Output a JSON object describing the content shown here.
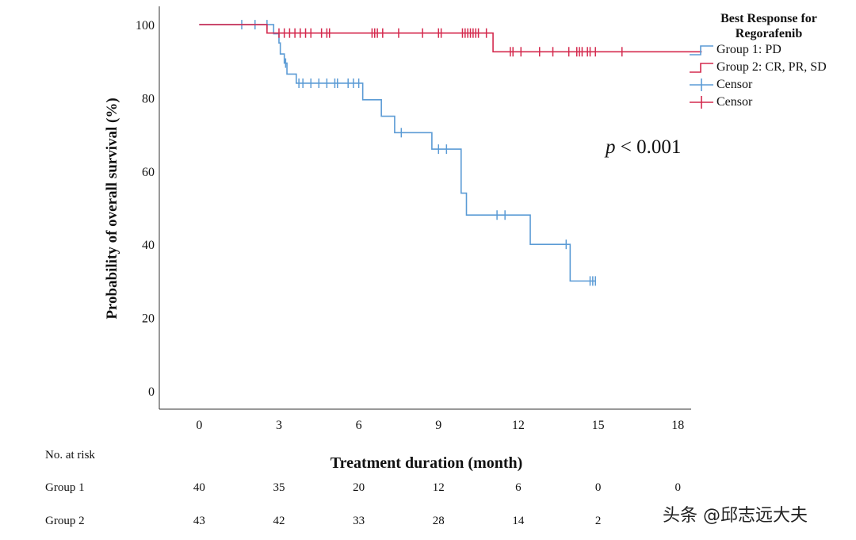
{
  "chart_data": {
    "type": "line",
    "subtype": "kaplan-meier",
    "title": "",
    "xlabel": "Treatment duration (month)",
    "ylabel": "Probability of overall survival (%)",
    "xlim": [
      -1.5,
      18.5
    ],
    "ylim": [
      -5,
      105
    ],
    "xticks": [
      0,
      3,
      6,
      9,
      12,
      15,
      18
    ],
    "yticks": [
      0,
      20,
      40,
      60,
      80,
      100
    ],
    "annotation_prefix": "p",
    "annotation_suffix": " < 0.001",
    "legend": {
      "title_line1": "Best Response for",
      "title_line2": "Regorafenib",
      "entries": [
        "Group 1: PD",
        "Group 2: CR, PR, SD",
        "Censor",
        "Censor"
      ]
    },
    "series": [
      {
        "name": "Group 1: PD",
        "color": "#5b9bd5",
        "steps": [
          [
            0,
            100
          ],
          [
            2.7,
            100
          ],
          [
            2.8,
            97.5
          ],
          [
            3.0,
            95
          ],
          [
            3.05,
            92
          ],
          [
            3.2,
            89.5
          ],
          [
            3.3,
            86.5
          ],
          [
            3.6,
            86.5
          ],
          [
            3.65,
            84
          ],
          [
            6.1,
            84
          ],
          [
            6.15,
            79.5
          ],
          [
            6.8,
            79.5
          ],
          [
            6.85,
            75
          ],
          [
            7.3,
            75
          ],
          [
            7.35,
            70.5
          ],
          [
            8.7,
            70.5
          ],
          [
            8.75,
            66
          ],
          [
            9.8,
            66
          ],
          [
            9.85,
            54
          ],
          [
            10.0,
            54
          ],
          [
            10.05,
            48
          ],
          [
            12.4,
            48
          ],
          [
            12.45,
            40
          ],
          [
            13.9,
            40
          ],
          [
            13.95,
            30
          ],
          [
            14.9,
            30
          ]
        ],
        "censor_x": [
          1.6,
          2.1,
          2.55,
          3.25,
          3.75,
          3.9,
          4.2,
          4.5,
          4.8,
          5.1,
          5.2,
          5.6,
          5.8,
          6.0,
          7.6,
          9.0,
          9.3,
          11.2,
          11.5,
          13.8,
          14.7,
          14.8,
          14.9
        ],
        "censor_y": [
          100,
          100,
          100,
          89.5,
          84,
          84,
          84,
          84,
          84,
          84,
          84,
          84,
          84,
          84,
          70.5,
          66,
          66,
          48,
          48,
          40,
          30,
          30,
          30
        ]
      },
      {
        "name": "Group 2: CR, PR, SD",
        "color": "#d42a4e",
        "steps": [
          [
            0,
            100
          ],
          [
            2.5,
            100
          ],
          [
            2.55,
            97.7
          ],
          [
            11.0,
            97.7
          ],
          [
            11.05,
            92.6
          ],
          [
            18.9,
            92.6
          ]
        ],
        "censor_x": [
          3.0,
          3.2,
          3.4,
          3.6,
          3.8,
          4.0,
          4.2,
          4.6,
          4.8,
          4.9,
          6.5,
          6.6,
          6.7,
          6.9,
          7.5,
          8.4,
          9.0,
          9.1,
          9.9,
          10.0,
          10.1,
          10.2,
          10.3,
          10.4,
          10.5,
          10.8,
          11.7,
          11.8,
          12.1,
          12.8,
          13.3,
          13.9,
          14.2,
          14.3,
          14.4,
          14.6,
          14.7,
          14.9,
          15.9
        ],
        "censor_y": [
          97.7,
          97.7,
          97.7,
          97.7,
          97.7,
          97.7,
          97.7,
          97.7,
          97.7,
          97.7,
          97.7,
          97.7,
          97.7,
          97.7,
          97.7,
          97.7,
          97.7,
          97.7,
          97.7,
          97.7,
          97.7,
          97.7,
          97.7,
          97.7,
          97.7,
          97.7,
          92.6,
          92.6,
          92.6,
          92.6,
          92.6,
          92.6,
          92.6,
          92.6,
          92.6,
          92.6,
          92.6,
          92.6,
          92.6
        ]
      }
    ],
    "risk_table": {
      "title": "No. at risk",
      "times": [
        0,
        3,
        6,
        9,
        12,
        15,
        18
      ],
      "rows": [
        {
          "label": "Group 1",
          "values": [
            "40",
            "35",
            "20",
            "12",
            "6",
            "0",
            "0"
          ]
        },
        {
          "label": "Group 2",
          "values": [
            "43",
            "42",
            "33",
            "28",
            "14",
            "2",
            ""
          ]
        }
      ]
    }
  },
  "watermark": "头条 @邱志远大夫"
}
